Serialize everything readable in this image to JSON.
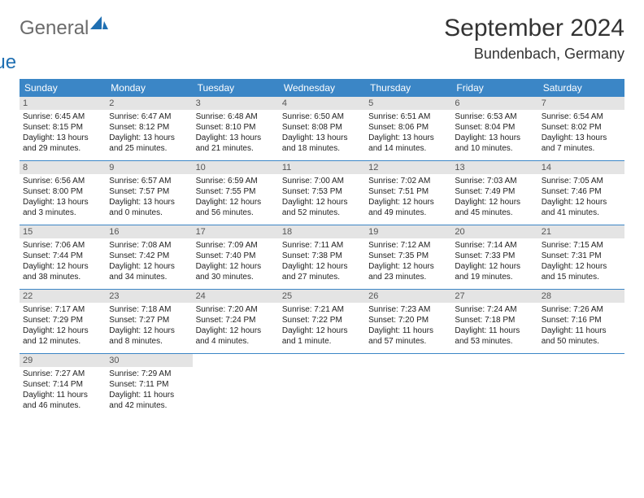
{
  "logo": {
    "text_gray": "General",
    "text_blue": "Blue"
  },
  "title": "September 2024",
  "location": "Bundenbach, Germany",
  "colors": {
    "header_bg": "#3b86c6",
    "header_text": "#ffffff",
    "daynum_bg": "#e4e4e4",
    "divider": "#3b86c6",
    "logo_gray": "#6b6b6b",
    "logo_blue": "#1f6fb2"
  },
  "days_of_week": [
    "Sunday",
    "Monday",
    "Tuesday",
    "Wednesday",
    "Thursday",
    "Friday",
    "Saturday"
  ],
  "weeks": [
    [
      {
        "n": "1",
        "sr": "Sunrise: 6:45 AM",
        "ss": "Sunset: 8:15 PM",
        "d1": "Daylight: 13 hours",
        "d2": "and 29 minutes."
      },
      {
        "n": "2",
        "sr": "Sunrise: 6:47 AM",
        "ss": "Sunset: 8:12 PM",
        "d1": "Daylight: 13 hours",
        "d2": "and 25 minutes."
      },
      {
        "n": "3",
        "sr": "Sunrise: 6:48 AM",
        "ss": "Sunset: 8:10 PM",
        "d1": "Daylight: 13 hours",
        "d2": "and 21 minutes."
      },
      {
        "n": "4",
        "sr": "Sunrise: 6:50 AM",
        "ss": "Sunset: 8:08 PM",
        "d1": "Daylight: 13 hours",
        "d2": "and 18 minutes."
      },
      {
        "n": "5",
        "sr": "Sunrise: 6:51 AM",
        "ss": "Sunset: 8:06 PM",
        "d1": "Daylight: 13 hours",
        "d2": "and 14 minutes."
      },
      {
        "n": "6",
        "sr": "Sunrise: 6:53 AM",
        "ss": "Sunset: 8:04 PM",
        "d1": "Daylight: 13 hours",
        "d2": "and 10 minutes."
      },
      {
        "n": "7",
        "sr": "Sunrise: 6:54 AM",
        "ss": "Sunset: 8:02 PM",
        "d1": "Daylight: 13 hours",
        "d2": "and 7 minutes."
      }
    ],
    [
      {
        "n": "8",
        "sr": "Sunrise: 6:56 AM",
        "ss": "Sunset: 8:00 PM",
        "d1": "Daylight: 13 hours",
        "d2": "and 3 minutes."
      },
      {
        "n": "9",
        "sr": "Sunrise: 6:57 AM",
        "ss": "Sunset: 7:57 PM",
        "d1": "Daylight: 13 hours",
        "d2": "and 0 minutes."
      },
      {
        "n": "10",
        "sr": "Sunrise: 6:59 AM",
        "ss": "Sunset: 7:55 PM",
        "d1": "Daylight: 12 hours",
        "d2": "and 56 minutes."
      },
      {
        "n": "11",
        "sr": "Sunrise: 7:00 AM",
        "ss": "Sunset: 7:53 PM",
        "d1": "Daylight: 12 hours",
        "d2": "and 52 minutes."
      },
      {
        "n": "12",
        "sr": "Sunrise: 7:02 AM",
        "ss": "Sunset: 7:51 PM",
        "d1": "Daylight: 12 hours",
        "d2": "and 49 minutes."
      },
      {
        "n": "13",
        "sr": "Sunrise: 7:03 AM",
        "ss": "Sunset: 7:49 PM",
        "d1": "Daylight: 12 hours",
        "d2": "and 45 minutes."
      },
      {
        "n": "14",
        "sr": "Sunrise: 7:05 AM",
        "ss": "Sunset: 7:46 PM",
        "d1": "Daylight: 12 hours",
        "d2": "and 41 minutes."
      }
    ],
    [
      {
        "n": "15",
        "sr": "Sunrise: 7:06 AM",
        "ss": "Sunset: 7:44 PM",
        "d1": "Daylight: 12 hours",
        "d2": "and 38 minutes."
      },
      {
        "n": "16",
        "sr": "Sunrise: 7:08 AM",
        "ss": "Sunset: 7:42 PM",
        "d1": "Daylight: 12 hours",
        "d2": "and 34 minutes."
      },
      {
        "n": "17",
        "sr": "Sunrise: 7:09 AM",
        "ss": "Sunset: 7:40 PM",
        "d1": "Daylight: 12 hours",
        "d2": "and 30 minutes."
      },
      {
        "n": "18",
        "sr": "Sunrise: 7:11 AM",
        "ss": "Sunset: 7:38 PM",
        "d1": "Daylight: 12 hours",
        "d2": "and 27 minutes."
      },
      {
        "n": "19",
        "sr": "Sunrise: 7:12 AM",
        "ss": "Sunset: 7:35 PM",
        "d1": "Daylight: 12 hours",
        "d2": "and 23 minutes."
      },
      {
        "n": "20",
        "sr": "Sunrise: 7:14 AM",
        "ss": "Sunset: 7:33 PM",
        "d1": "Daylight: 12 hours",
        "d2": "and 19 minutes."
      },
      {
        "n": "21",
        "sr": "Sunrise: 7:15 AM",
        "ss": "Sunset: 7:31 PM",
        "d1": "Daylight: 12 hours",
        "d2": "and 15 minutes."
      }
    ],
    [
      {
        "n": "22",
        "sr": "Sunrise: 7:17 AM",
        "ss": "Sunset: 7:29 PM",
        "d1": "Daylight: 12 hours",
        "d2": "and 12 minutes."
      },
      {
        "n": "23",
        "sr": "Sunrise: 7:18 AM",
        "ss": "Sunset: 7:27 PM",
        "d1": "Daylight: 12 hours",
        "d2": "and 8 minutes."
      },
      {
        "n": "24",
        "sr": "Sunrise: 7:20 AM",
        "ss": "Sunset: 7:24 PM",
        "d1": "Daylight: 12 hours",
        "d2": "and 4 minutes."
      },
      {
        "n": "25",
        "sr": "Sunrise: 7:21 AM",
        "ss": "Sunset: 7:22 PM",
        "d1": "Daylight: 12 hours",
        "d2": "and 1 minute."
      },
      {
        "n": "26",
        "sr": "Sunrise: 7:23 AM",
        "ss": "Sunset: 7:20 PM",
        "d1": "Daylight: 11 hours",
        "d2": "and 57 minutes."
      },
      {
        "n": "27",
        "sr": "Sunrise: 7:24 AM",
        "ss": "Sunset: 7:18 PM",
        "d1": "Daylight: 11 hours",
        "d2": "and 53 minutes."
      },
      {
        "n": "28",
        "sr": "Sunrise: 7:26 AM",
        "ss": "Sunset: 7:16 PM",
        "d1": "Daylight: 11 hours",
        "d2": "and 50 minutes."
      }
    ],
    [
      {
        "n": "29",
        "sr": "Sunrise: 7:27 AM",
        "ss": "Sunset: 7:14 PM",
        "d1": "Daylight: 11 hours",
        "d2": "and 46 minutes."
      },
      {
        "n": "30",
        "sr": "Sunrise: 7:29 AM",
        "ss": "Sunset: 7:11 PM",
        "d1": "Daylight: 11 hours",
        "d2": "and 42 minutes."
      },
      null,
      null,
      null,
      null,
      null
    ]
  ]
}
